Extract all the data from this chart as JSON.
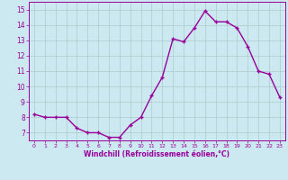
{
  "hours": [
    0,
    1,
    2,
    3,
    4,
    5,
    6,
    7,
    8,
    9,
    10,
    11,
    12,
    13,
    14,
    15,
    16,
    17,
    18,
    19,
    20,
    21,
    22,
    23
  ],
  "values": [
    8.2,
    8.0,
    8.0,
    8.0,
    7.3,
    7.0,
    7.0,
    6.7,
    6.7,
    7.5,
    8.0,
    9.4,
    10.6,
    13.1,
    12.9,
    13.8,
    14.9,
    14.2,
    14.2,
    13.8,
    12.6,
    11.0,
    10.8,
    9.3
  ],
  "line_color": "#990099",
  "marker": "+",
  "marker_size": 3.5,
  "marker_lw": 1.0,
  "background_color": "#cce8f0",
  "grid_color": "#aacccc",
  "xlabel": "Windchill (Refroidissement éolien,°C)",
  "ylim": [
    6.5,
    15.5
  ],
  "xlim": [
    -0.5,
    23.5
  ],
  "yticks": [
    7,
    8,
    9,
    10,
    11,
    12,
    13,
    14,
    15
  ],
  "xticks": [
    0,
    1,
    2,
    3,
    4,
    5,
    6,
    7,
    8,
    9,
    10,
    11,
    12,
    13,
    14,
    15,
    16,
    17,
    18,
    19,
    20,
    21,
    22,
    23
  ],
  "axis_color": "#990099",
  "tick_label_color": "#990099",
  "xlabel_color": "#990099",
  "linewidth": 1.0,
  "tick_fontsize": 5.5,
  "xlabel_fontsize": 5.5
}
